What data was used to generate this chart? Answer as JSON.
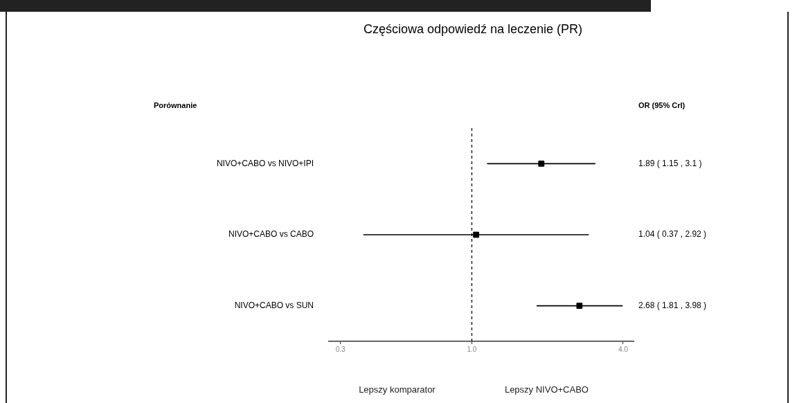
{
  "chart_data": {
    "type": "scatter",
    "orientation": "horizontal",
    "title": "Częściowa odpowiedź na leczenie (PR)",
    "categories": [
      "NIVO+CABO vs NIVO+IPI",
      "NIVO+CABO vs CABO",
      "NIVO+CABO vs SUN"
    ],
    "values": [
      1.89,
      1.04,
      2.68
    ],
    "color": "#000000",
    "errors": [
      [
        1.15,
        3.1
      ],
      [
        0.37,
        2.92
      ],
      [
        1.81,
        3.98
      ]
    ],
    "annotations": [
      "Porównanie",
      "OR (95% CrI)",
      "Lepszy komparator",
      "Lepszy NIVO+CABO",
      "1.89 ( 1.15 , 3.1 )",
      "1.04 ( 0.37 , 2.92 )",
      "2.68 ( 1.81 , 3.98 )"
    ],
    "log": "x",
    "xlim": [
      0.27,
      4.4
    ],
    "xticks": [
      {
        "value": 0.3,
        "label": "0.3"
      },
      {
        "value": 1,
        "label": "1.0"
      },
      {
        "value": 4,
        "label": "4.0"
      }
    ],
    "ref_lines": [
      {
        "axis": "x",
        "value": 1,
        "line_style": "dashed"
      }
    ],
    "marker": "square",
    "grid": false,
    "legend": false
  }
}
